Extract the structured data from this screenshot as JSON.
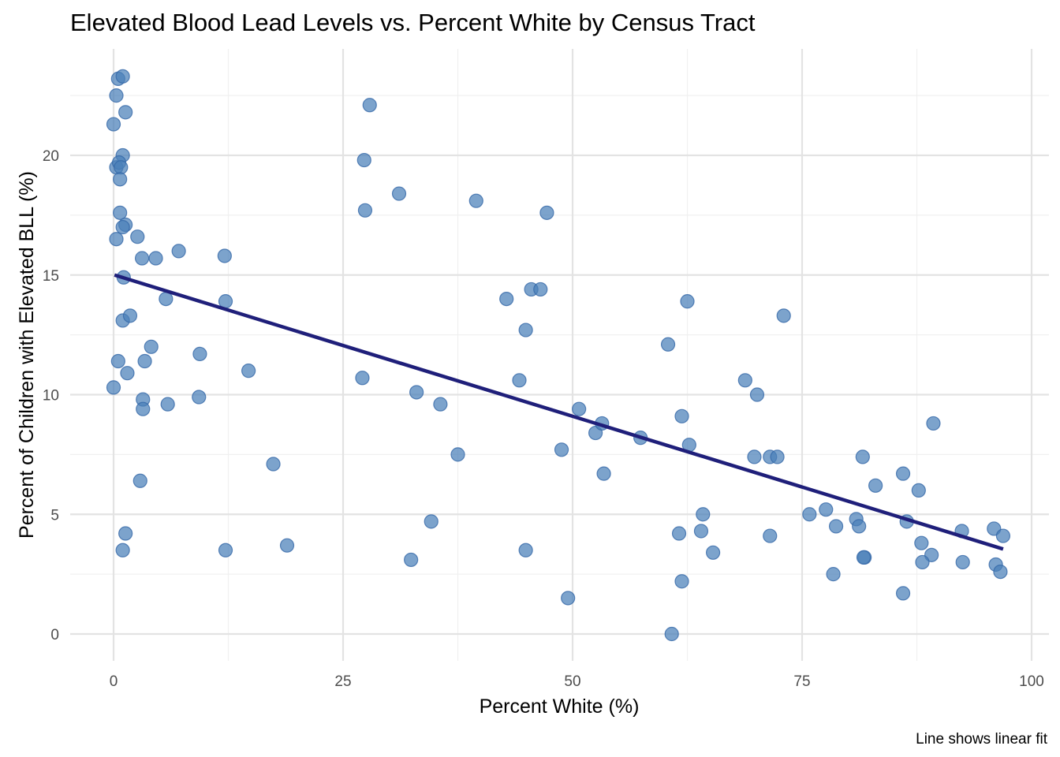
{
  "chart_data": {
    "type": "scatter",
    "title": "Elevated Blood Lead Levels vs. Percent White by Census Tract",
    "xlabel": "Percent White (%)",
    "ylabel": "Percent of Children with Elevated BLL (%)",
    "caption": "Line shows linear fit",
    "xlim": [
      -5,
      102
    ],
    "ylim": [
      -1.2,
      24.2
    ],
    "x_ticks": [
      0,
      25,
      50,
      75,
      100
    ],
    "x_tick_labels": [
      "0",
      "25",
      "50",
      "75",
      "100"
    ],
    "y_ticks": [
      0,
      5,
      10,
      15,
      20
    ],
    "y_tick_labels": [
      "0",
      "5",
      "10",
      "15",
      "20"
    ],
    "grid": true,
    "colors": {
      "points": "#4A7FB8",
      "fit_line": "#1F1F7A"
    },
    "series": [
      {
        "type": "scatter",
        "x": [
          0.5,
          1.0,
          0.3,
          0.0,
          1.3,
          1.0,
          0.3,
          0.6,
          0.8,
          0.7,
          0.7,
          1.3,
          1.0,
          0.3,
          2.6,
          3.1,
          4.6,
          7.1,
          12.1,
          1.1,
          5.7,
          12.2,
          1.0,
          1.8,
          4.1,
          3.4,
          0.5,
          9.4,
          1.5,
          0.0,
          3.2,
          3.2,
          5.9,
          9.3,
          14.7,
          17.4,
          2.9,
          1.3,
          1.0,
          12.2,
          18.9,
          27.9,
          27.3,
          27.4,
          31.1,
          39.5,
          47.2,
          45.5,
          46.5,
          42.8,
          44.9,
          27.1,
          44.2,
          33.0,
          35.6,
          37.5,
          34.6,
          32.4,
          44.9,
          49.5,
          50.7,
          48.8,
          52.5,
          53.2,
          57.4,
          53.4,
          60.4,
          61.9,
          62.5,
          62.7,
          64.2,
          64.0,
          61.6,
          65.3,
          61.9,
          60.8,
          68.8,
          70.1,
          73.0,
          69.8,
          71.5,
          72.3,
          71.5,
          75.8,
          77.6,
          78.7,
          78.4,
          81.6,
          81.8,
          80.9,
          81.2,
          81.7,
          83.0,
          86.0,
          87.7,
          86.4,
          88.0,
          89.3,
          89.1,
          88.1,
          86.0,
          92.4,
          92.5,
          95.9,
          96.1,
          96.6,
          96.9
        ],
        "y": [
          23.2,
          23.3,
          22.5,
          21.3,
          21.8,
          20.0,
          19.5,
          19.7,
          19.5,
          19.0,
          17.6,
          17.1,
          17.0,
          16.5,
          16.6,
          15.7,
          15.7,
          16.0,
          15.8,
          14.9,
          14.0,
          13.9,
          13.1,
          13.3,
          12.0,
          11.4,
          11.4,
          11.7,
          10.9,
          10.3,
          9.8,
          9.4,
          9.6,
          9.9,
          11.0,
          7.1,
          6.4,
          4.2,
          3.5,
          3.5,
          3.7,
          22.1,
          19.8,
          17.7,
          18.4,
          18.1,
          17.6,
          14.4,
          14.4,
          14.0,
          12.7,
          10.7,
          10.6,
          10.1,
          9.6,
          7.5,
          4.7,
          3.1,
          3.5,
          1.5,
          9.4,
          7.7,
          8.4,
          8.8,
          8.2,
          6.7,
          12.1,
          9.1,
          13.9,
          7.9,
          5.0,
          4.3,
          4.2,
          3.4,
          2.2,
          0.0,
          10.6,
          10.0,
          13.3,
          7.4,
          7.4,
          7.4,
          4.1,
          5.0,
          5.2,
          4.5,
          2.5,
          7.4,
          3.2,
          4.8,
          4.5,
          3.2,
          6.2,
          6.7,
          6.0,
          4.7,
          3.8,
          8.8,
          3.3,
          3.0,
          1.7,
          4.3,
          3.0,
          4.4,
          2.9,
          2.6,
          4.1
        ]
      },
      {
        "type": "line",
        "name": "linear fit",
        "x": [
          0.1,
          96.9
        ],
        "y": [
          15.0,
          3.55
        ]
      }
    ]
  }
}
